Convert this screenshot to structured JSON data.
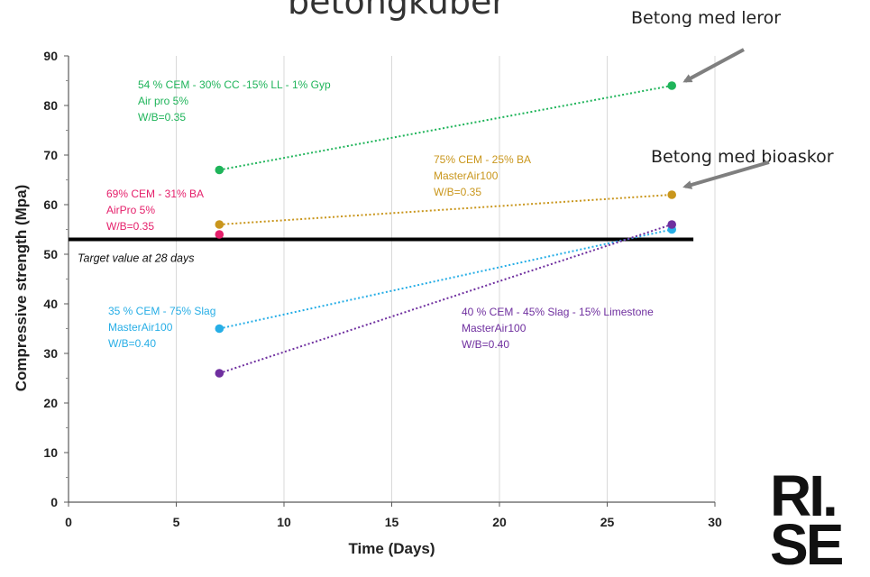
{
  "page": {
    "title": "betongkuber",
    "callouts": [
      "Betong med leror",
      "Betong med bioaskor"
    ],
    "logo_text": "RISE"
  },
  "colors": {
    "green": "#1fb45a",
    "gold": "#c9961c",
    "pink": "#e5206b",
    "blue": "#27aee6",
    "purple": "#6f2f9f",
    "target": "#000000",
    "arrow": "#7f7f7f"
  },
  "chart_data": {
    "type": "scatter",
    "title": "",
    "xlabel": "Time (Days)",
    "ylabel": "Compressive strength (Mpa)",
    "xlim": [
      0,
      30
    ],
    "ylim": [
      0,
      90
    ],
    "x_ticks": [
      0,
      5,
      10,
      15,
      20,
      25,
      30
    ],
    "y_ticks": [
      0,
      10,
      20,
      30,
      40,
      50,
      60,
      70,
      80,
      90
    ],
    "grid": "vertical",
    "target": {
      "value": 53,
      "x_range": [
        0,
        29
      ],
      "label": "Target value at 28 days"
    },
    "series": [
      {
        "key": "green",
        "x": [
          7,
          28
        ],
        "y": [
          67,
          84
        ],
        "label_lines": [
          "54 % CEM - 30% CC -15% LL - 1% Gyp",
          "Air pro 5%",
          "W/B=0.35"
        ]
      },
      {
        "key": "gold",
        "x": [
          7,
          28
        ],
        "y": [
          56,
          62
        ],
        "label_lines": [
          "75% CEM - 25% BA",
          "MasterAir100",
          "W/B=0.35"
        ]
      },
      {
        "key": "pink",
        "x": [
          7
        ],
        "y": [
          54
        ],
        "label_lines": [
          "69% CEM - 31% BA",
          "AirPro 5%",
          "W/B=0.35"
        ]
      },
      {
        "key": "blue",
        "x": [
          7,
          28
        ],
        "y": [
          35,
          55
        ],
        "label_lines": [
          "35 % CEM - 75% Slag",
          "MasterAir100",
          "W/B=0.40"
        ]
      },
      {
        "key": "purple",
        "x": [
          7,
          28
        ],
        "y": [
          26,
          56
        ],
        "label_lines": [
          "40 % CEM - 45% Slag - 15% Limestone",
          "MasterAir100",
          "W/B=0.40"
        ]
      }
    ]
  }
}
